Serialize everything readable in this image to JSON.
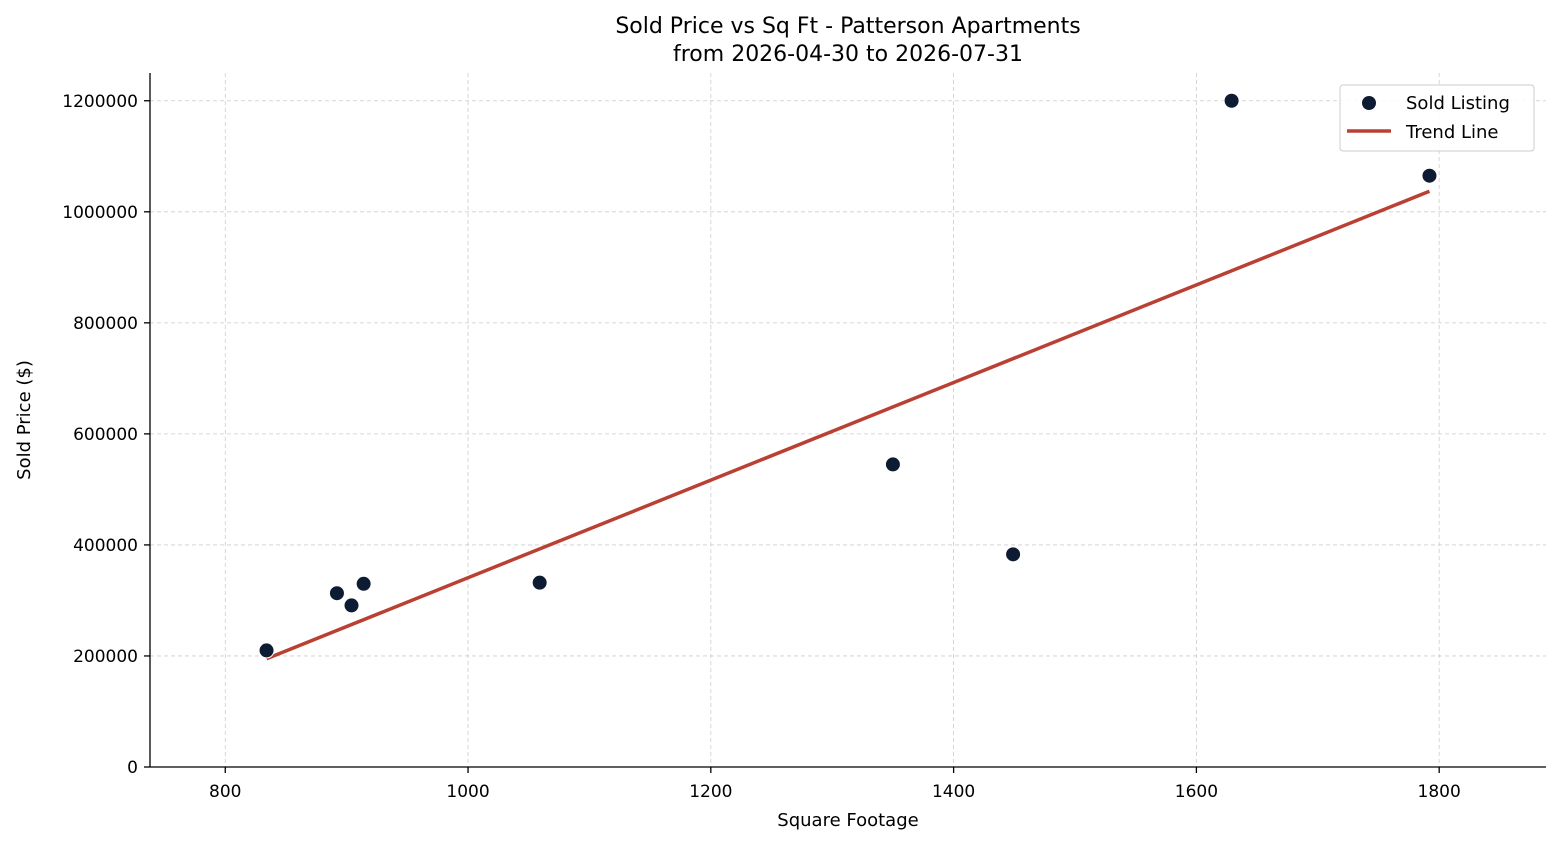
{
  "chart_data": {
    "type": "scatter",
    "title": "Sold Price vs Sq Ft - Patterson Apartments",
    "subtitle": "from 2026-04-30 to 2026-07-31",
    "xlabel": "Square Footage",
    "ylabel": "Sold Price ($)",
    "xlim": [
      738,
      1888
    ],
    "ylim": [
      0,
      1250000
    ],
    "xticks": [
      800,
      1000,
      1200,
      1400,
      1600,
      1800
    ],
    "yticks": [
      0,
      200000,
      400000,
      600000,
      800000,
      1000000,
      1200000
    ],
    "grid": true,
    "legend_position": "top-right",
    "series": [
      {
        "name": "Sold Listing",
        "kind": "scatter",
        "color": "#0d1b33",
        "x": [
          834,
          892,
          904,
          914,
          1059,
          1350,
          1449,
          1629,
          1792
        ],
        "y": [
          210000,
          313000,
          291000,
          330000,
          332000,
          545000,
          383000,
          1200000,
          1065000
        ]
      },
      {
        "name": "Trend Line",
        "kind": "line",
        "color": "#b94032",
        "x": [
          834,
          1792
        ],
        "y": [
          195000,
          1037000
        ]
      }
    ]
  }
}
